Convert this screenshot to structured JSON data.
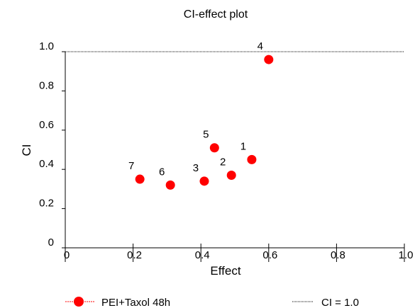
{
  "chart_data": {
    "type": "scatter",
    "title": "CI-effect plot",
    "xlabel": "Effect",
    "ylabel": "CI",
    "xlim": [
      0,
      1.0
    ],
    "ylim": [
      0,
      1.0
    ],
    "x_ticks": [
      "0",
      "0.2",
      "0.4",
      "0.6",
      "0.8",
      "1.0"
    ],
    "y_ticks": [
      "0",
      "0.2",
      "0.4",
      "0.6",
      "0.8",
      "1.0"
    ],
    "grid": false,
    "legend_position": "bottom",
    "series": [
      {
        "name": "PEI+Taxol 48h",
        "color": "#ff0000",
        "marker": "circle",
        "points": [
          {
            "label": "1",
            "x": 0.55,
            "y": 0.45
          },
          {
            "label": "2",
            "x": 0.49,
            "y": 0.37
          },
          {
            "label": "3",
            "x": 0.41,
            "y": 0.34
          },
          {
            "label": "4",
            "x": 0.6,
            "y": 0.96
          },
          {
            "label": "5",
            "x": 0.44,
            "y": 0.51
          },
          {
            "label": "6",
            "x": 0.31,
            "y": 0.32
          },
          {
            "label": "7",
            "x": 0.22,
            "y": 0.35
          }
        ]
      }
    ],
    "reference_line": {
      "name": "CI = 1.0",
      "y": 1.0,
      "style": "dotted",
      "color": "#000000"
    }
  }
}
